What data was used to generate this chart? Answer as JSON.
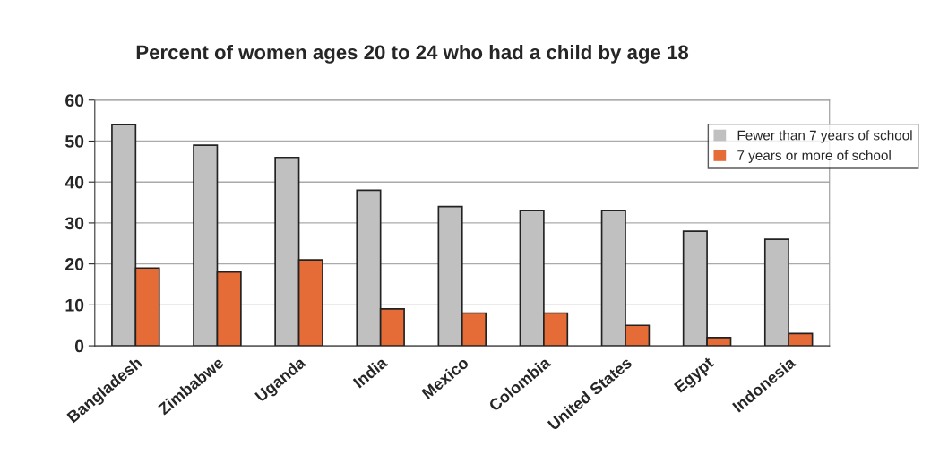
{
  "chart_data": {
    "type": "bar",
    "title": "Percent of women ages 20 to 24 who had a child by age 18",
    "categories": [
      "Bangladesh",
      "Zimbabwe",
      "Uganda",
      "India",
      "Mexico",
      "Colombia",
      "United States",
      "Egypt",
      "Indonesia"
    ],
    "series": [
      {
        "name": "Fewer than 7 years of school",
        "color": "#c0c0c0",
        "values": [
          54,
          49,
          46,
          38,
          34,
          33,
          33,
          28,
          26
        ]
      },
      {
        "name": "7 years or more of school",
        "color": "#e66c37",
        "values": [
          19,
          18,
          21,
          9,
          8,
          8,
          5,
          2,
          3
        ]
      }
    ],
    "ylim": [
      0,
      60
    ],
    "yticks": [
      0,
      10,
      20,
      30,
      40,
      50,
      60
    ],
    "grid": "y",
    "legend": "top right"
  }
}
